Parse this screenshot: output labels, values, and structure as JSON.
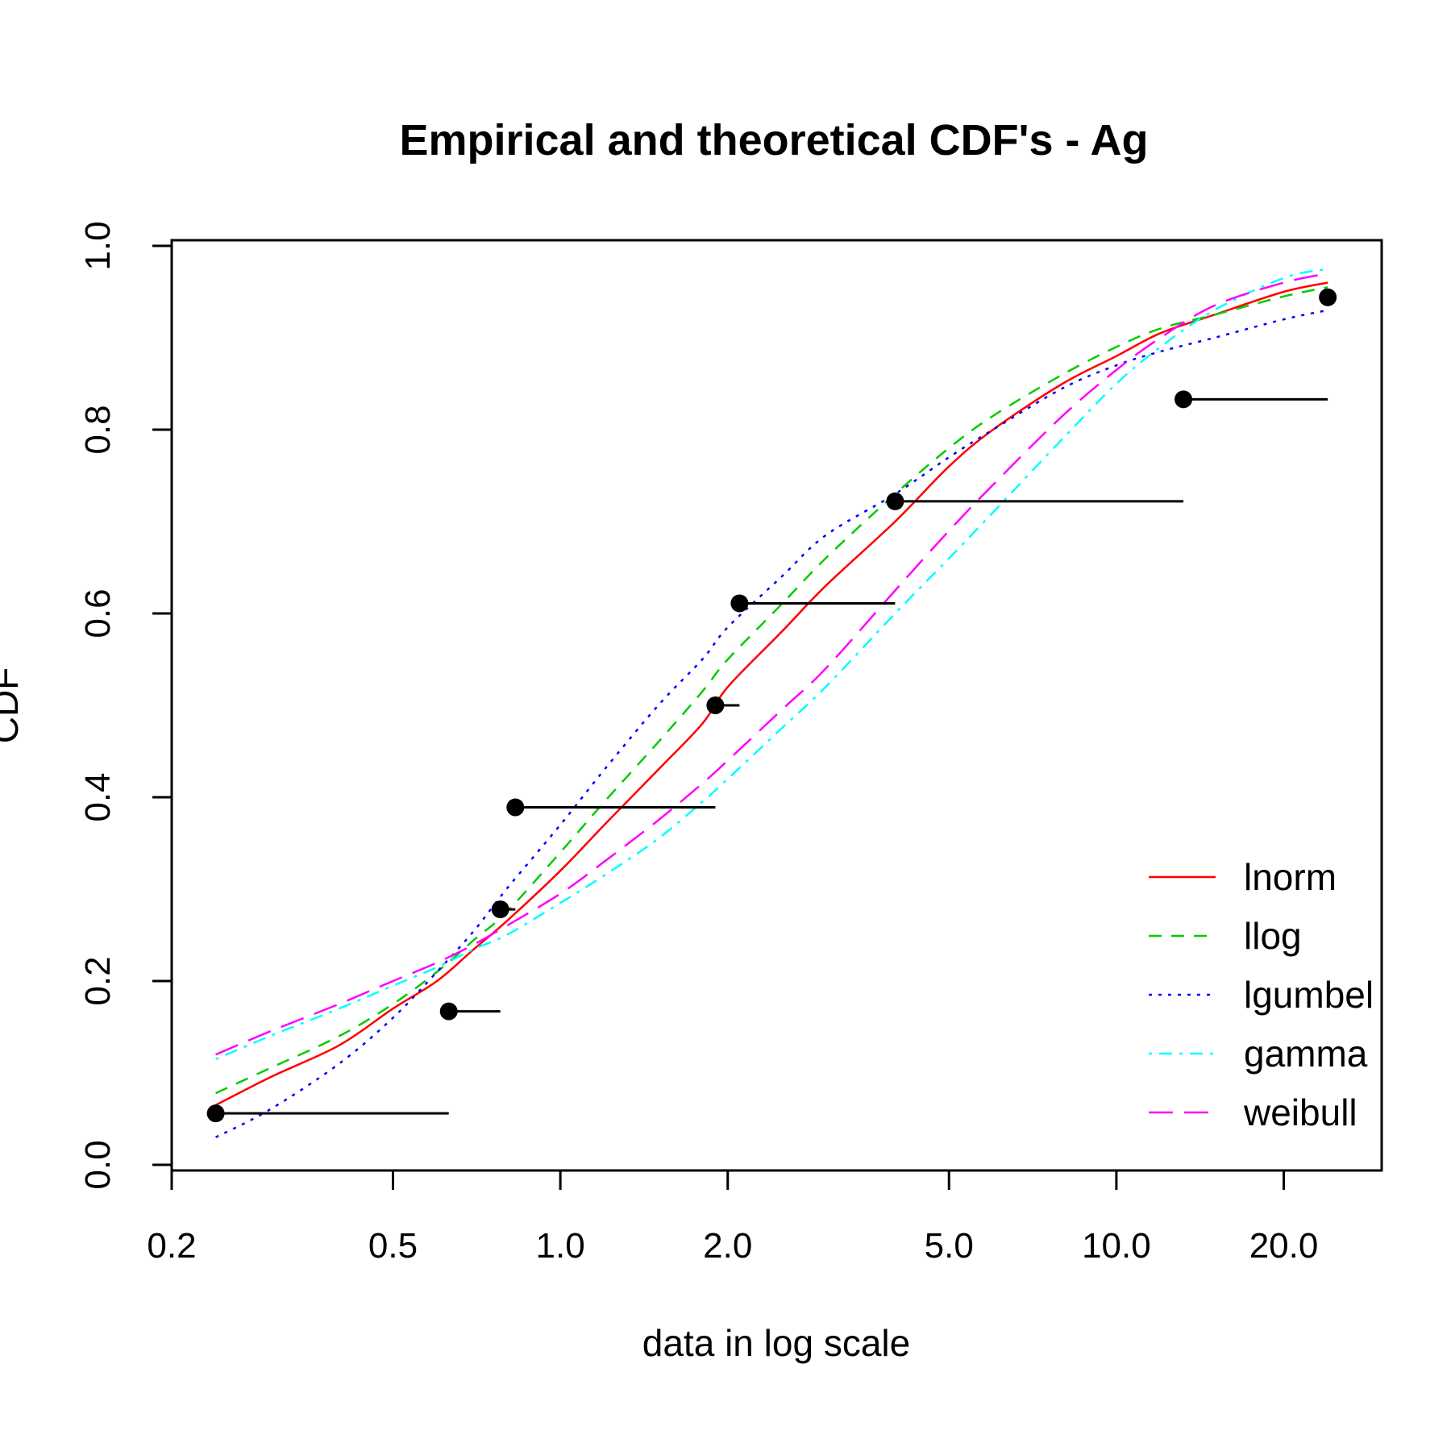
{
  "chart_data": {
    "type": "line",
    "title": "Empirical and theoretical CDF's - Ag",
    "xlabel": "data in log scale",
    "ylabel": "CDF",
    "x_scale": "log",
    "xlim": [
      0.2,
      30
    ],
    "ylim": [
      0,
      1
    ],
    "x_ticks": [
      0.2,
      0.5,
      1.0,
      2.0,
      5.0,
      10.0,
      20.0
    ],
    "x_tick_labels": [
      "0.2",
      "0.5",
      "1.0",
      "2.0",
      "5.0",
      "10.0",
      "20.0"
    ],
    "y_ticks": [
      0.0,
      0.2,
      0.4,
      0.6,
      0.8,
      1.0
    ],
    "y_tick_labels": [
      "0.0",
      "0.2",
      "0.4",
      "0.6",
      "0.8",
      "1.0"
    ],
    "grid": false,
    "legend_position": "bottom-right",
    "empirical": {
      "x": [
        0.24,
        0.63,
        0.78,
        0.83,
        1.9,
        2.1,
        4.0,
        13.2,
        24.0
      ],
      "y": [
        0.056,
        0.167,
        0.278,
        0.389,
        0.5,
        0.611,
        0.722,
        0.833,
        0.944
      ]
    },
    "series": [
      {
        "name": "lnorm",
        "color": "#ff0000",
        "dash": "solid",
        "x": [
          0.24,
          0.3,
          0.4,
          0.5,
          0.6,
          0.7,
          0.8,
          1.0,
          1.2,
          1.5,
          1.8,
          2.0,
          2.5,
          3.0,
          4.0,
          5.0,
          6.0,
          8.0,
          10.0,
          12.0,
          15.0,
          20.0,
          24.0
        ],
        "y": [
          0.065,
          0.095,
          0.13,
          0.17,
          0.2,
          0.235,
          0.265,
          0.32,
          0.37,
          0.43,
          0.48,
          0.52,
          0.58,
          0.63,
          0.7,
          0.76,
          0.8,
          0.85,
          0.88,
          0.905,
          0.925,
          0.95,
          0.96
        ]
      },
      {
        "name": "llog",
        "color": "#00cc00",
        "dash": "dashed",
        "x": [
          0.24,
          0.3,
          0.4,
          0.5,
          0.6,
          0.7,
          0.8,
          1.0,
          1.2,
          1.5,
          1.8,
          2.0,
          2.5,
          3.0,
          4.0,
          5.0,
          6.0,
          8.0,
          10.0,
          12.0,
          15.0,
          20.0,
          24.0
        ],
        "y": [
          0.078,
          0.105,
          0.14,
          0.175,
          0.21,
          0.245,
          0.275,
          0.34,
          0.395,
          0.46,
          0.515,
          0.55,
          0.61,
          0.66,
          0.73,
          0.78,
          0.815,
          0.86,
          0.89,
          0.91,
          0.925,
          0.945,
          0.955
        ]
      },
      {
        "name": "lgumbel",
        "color": "#0000ff",
        "dash": "dotted",
        "x": [
          0.24,
          0.3,
          0.4,
          0.5,
          0.6,
          0.7,
          0.8,
          1.0,
          1.2,
          1.5,
          1.8,
          2.0,
          2.5,
          3.0,
          4.0,
          5.0,
          6.0,
          8.0,
          10.0,
          12.0,
          15.0,
          20.0,
          24.0
        ],
        "y": [
          0.03,
          0.06,
          0.11,
          0.16,
          0.21,
          0.255,
          0.3,
          0.37,
          0.43,
          0.5,
          0.55,
          0.585,
          0.64,
          0.685,
          0.73,
          0.77,
          0.8,
          0.845,
          0.87,
          0.885,
          0.9,
          0.92,
          0.93
        ]
      },
      {
        "name": "gamma",
        "color": "#00ffff",
        "dash": "dashdot",
        "x": [
          0.24,
          0.3,
          0.4,
          0.5,
          0.6,
          0.7,
          0.8,
          1.0,
          1.2,
          1.5,
          1.8,
          2.0,
          2.5,
          3.0,
          4.0,
          5.0,
          6.0,
          8.0,
          10.0,
          12.0,
          15.0,
          20.0,
          24.0
        ],
        "y": [
          0.115,
          0.14,
          0.17,
          0.195,
          0.215,
          0.235,
          0.25,
          0.285,
          0.315,
          0.355,
          0.395,
          0.42,
          0.475,
          0.52,
          0.6,
          0.66,
          0.71,
          0.79,
          0.85,
          0.89,
          0.93,
          0.965,
          0.975
        ]
      },
      {
        "name": "weibull",
        "color": "#ff00ff",
        "dash": "longdash",
        "x": [
          0.24,
          0.3,
          0.4,
          0.5,
          0.6,
          0.7,
          0.8,
          1.0,
          1.2,
          1.5,
          1.8,
          2.0,
          2.5,
          3.0,
          4.0,
          5.0,
          6.0,
          8.0,
          10.0,
          12.0,
          15.0,
          20.0,
          24.0
        ],
        "y": [
          0.12,
          0.145,
          0.175,
          0.2,
          0.22,
          0.24,
          0.26,
          0.295,
          0.33,
          0.375,
          0.415,
          0.44,
          0.495,
          0.54,
          0.625,
          0.69,
          0.74,
          0.815,
          0.865,
          0.9,
          0.935,
          0.96,
          0.97
        ]
      }
    ]
  }
}
